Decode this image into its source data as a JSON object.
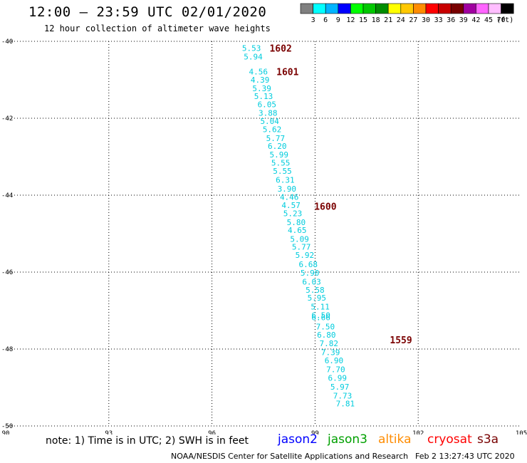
{
  "header": {
    "title": "12:00 – 23:59 UTC 02/01/2020",
    "subtitle": "12 hour collection of altimeter wave heights"
  },
  "colorbar": {
    "unit": "(ft)",
    "swatches": [
      {
        "color": "#808080",
        "label": "3"
      },
      {
        "color": "#00ffff",
        "label": "6"
      },
      {
        "color": "#00b4ff",
        "label": "9"
      },
      {
        "color": "#0000ff",
        "label": "12"
      },
      {
        "color": "#00ff00",
        "label": "15"
      },
      {
        "color": "#00c800",
        "label": "18"
      },
      {
        "color": "#008c00",
        "label": "21"
      },
      {
        "color": "#ffff00",
        "label": "24"
      },
      {
        "color": "#ffc800",
        "label": "27"
      },
      {
        "color": "#ff8c00",
        "label": "30"
      },
      {
        "color": "#ff0000",
        "label": "33"
      },
      {
        "color": "#c80000",
        "label": "36"
      },
      {
        "color": "#780000",
        "label": "39"
      },
      {
        "color": "#a000a0",
        "label": "42"
      },
      {
        "color": "#ff64ff",
        "label": "45"
      },
      {
        "color": "#ffbeff",
        "label": "70"
      },
      {
        "color": "#000000",
        "label": ""
      }
    ]
  },
  "chart_data": {
    "type": "scatter",
    "x_ticks": [
      "90",
      "93",
      "96",
      "99",
      "102",
      "105"
    ],
    "y_ticks": [
      "-40",
      "-42",
      "-44",
      "-46",
      "-48",
      "-50"
    ],
    "xlim": [
      90,
      105
    ],
    "ylim": [
      -50,
      -40
    ],
    "grid": true,
    "series": [
      {
        "color": "#00ccdd",
        "points": [
          {
            "lon": 97.15,
            "lat": -40.18,
            "swh": "5.53"
          },
          {
            "lon": 97.2,
            "lat": -40.4,
            "swh": "5.94"
          },
          {
            "lon": 97.35,
            "lat": -40.79,
            "swh": "4.56"
          },
          {
            "lon": 97.4,
            "lat": -41.0,
            "swh": "4.39"
          },
          {
            "lon": 97.45,
            "lat": -41.22,
            "swh": "5.39"
          },
          {
            "lon": 97.5,
            "lat": -41.43,
            "swh": "5.13"
          },
          {
            "lon": 97.6,
            "lat": -41.64,
            "swh": "6.05"
          },
          {
            "lon": 97.63,
            "lat": -41.86,
            "swh": "3.88"
          },
          {
            "lon": 97.68,
            "lat": -42.07,
            "swh": "5.04"
          },
          {
            "lon": 97.75,
            "lat": -42.29,
            "swh": "5.62"
          },
          {
            "lon": 97.85,
            "lat": -42.52,
            "swh": "5.77"
          },
          {
            "lon": 97.9,
            "lat": -42.72,
            "swh": "6.20"
          },
          {
            "lon": 97.95,
            "lat": -42.94,
            "swh": "5.99"
          },
          {
            "lon": 98.0,
            "lat": -43.16,
            "swh": "5.55"
          },
          {
            "lon": 98.05,
            "lat": -43.37,
            "swh": "5.55"
          },
          {
            "lon": 98.13,
            "lat": -43.6,
            "swh": "6.31"
          },
          {
            "lon": 98.18,
            "lat": -43.83,
            "swh": "3.90"
          },
          {
            "lon": 98.25,
            "lat": -44.05,
            "swh": "4.46"
          },
          {
            "lon": 98.3,
            "lat": -44.26,
            "swh": "4.57"
          },
          {
            "lon": 98.35,
            "lat": -44.47,
            "swh": "5.23"
          },
          {
            "lon": 98.45,
            "lat": -44.7,
            "swh": "5.80"
          },
          {
            "lon": 98.48,
            "lat": -44.91,
            "swh": "4.65"
          },
          {
            "lon": 98.55,
            "lat": -45.14,
            "swh": "5.09"
          },
          {
            "lon": 98.6,
            "lat": -45.34,
            "swh": "5.77"
          },
          {
            "lon": 98.7,
            "lat": -45.56,
            "swh": "5.92"
          },
          {
            "lon": 98.8,
            "lat": -45.8,
            "swh": "6.68"
          },
          {
            "lon": 98.85,
            "lat": -46.02,
            "swh": "5.90"
          },
          {
            "lon": 98.9,
            "lat": -46.25,
            "swh": "6.03"
          },
          {
            "lon": 99.0,
            "lat": -46.46,
            "swh": "5.58"
          },
          {
            "lon": 99.05,
            "lat": -46.67,
            "swh": "5.95"
          },
          {
            "lon": 99.15,
            "lat": -46.9,
            "swh": "5.11"
          },
          {
            "lon": 99.17,
            "lat": -47.12,
            "swh": "6.50"
          },
          {
            "lon": 99.17,
            "lat": -47.18,
            "swh": "6.66"
          },
          {
            "lon": 99.3,
            "lat": -47.42,
            "swh": "7.50"
          },
          {
            "lon": 99.33,
            "lat": -47.63,
            "swh": "6.80"
          },
          {
            "lon": 99.4,
            "lat": -47.85,
            "swh": "7.82"
          },
          {
            "lon": 99.45,
            "lat": -48.08,
            "swh": "7.39"
          },
          {
            "lon": 99.55,
            "lat": -48.3,
            "swh": "6.90"
          },
          {
            "lon": 99.6,
            "lat": -48.53,
            "swh": "7.70"
          },
          {
            "lon": 99.65,
            "lat": -48.75,
            "swh": "6.99"
          },
          {
            "lon": 99.72,
            "lat": -48.98,
            "swh": "5.97"
          },
          {
            "lon": 99.8,
            "lat": -49.21,
            "swh": "7.73"
          },
          {
            "lon": 99.88,
            "lat": -49.42,
            "swh": "7.81"
          }
        ]
      }
    ],
    "time_labels": [
      {
        "text": "1602",
        "lon": 98.0,
        "lat": -40.18
      },
      {
        "text": "1601",
        "lon": 98.2,
        "lat": -40.79
      },
      {
        "text": "1600",
        "lon": 99.3,
        "lat": -44.29
      },
      {
        "text": "1559",
        "lon": 101.5,
        "lat": -47.76
      }
    ]
  },
  "footer": {
    "note": "note: 1) Time is in UTC; 2) SWH is in feet",
    "satellites": [
      {
        "name": "jason2",
        "color": "#0000ff"
      },
      {
        "name": "jason3",
        "color": "#00a000"
      },
      {
        "name": "altika",
        "color": "#ff8c00"
      },
      {
        "name": "cryosat",
        "color": "#ff0000"
      },
      {
        "name": "s3a",
        "color": "#780000"
      }
    ],
    "credit": "NOAA/NESDIS Center for Satellite Applications and Research",
    "timestamp": "Feb  2 13:27:43 UTC 2020"
  }
}
